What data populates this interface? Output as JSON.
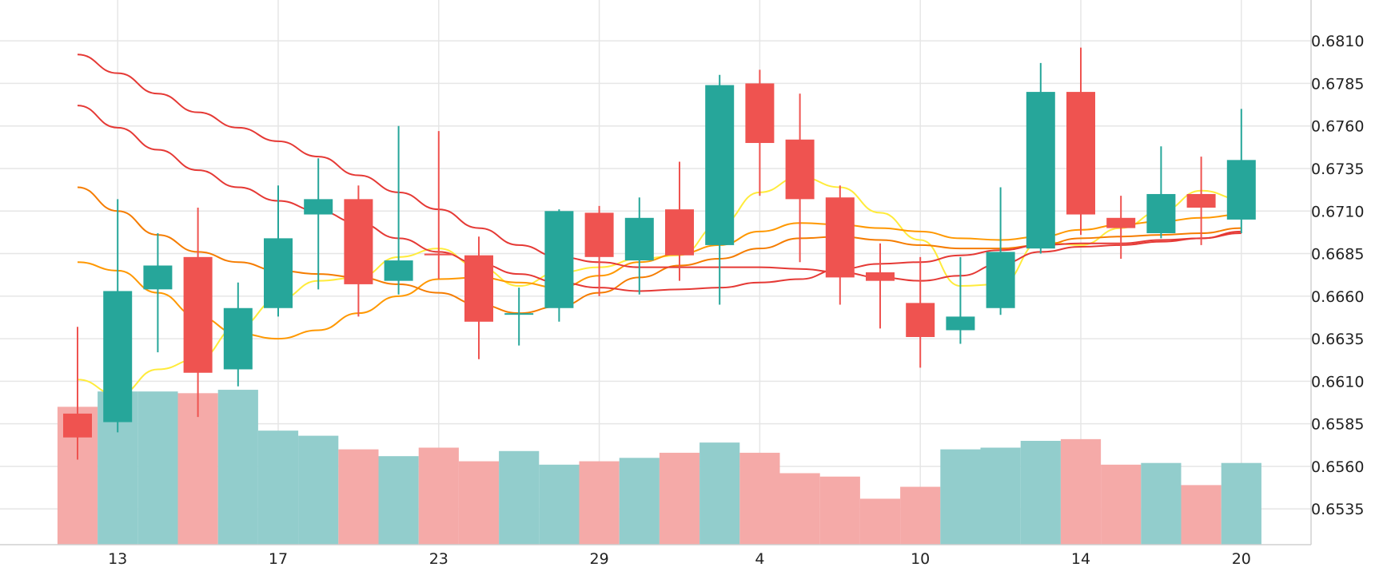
{
  "chart_data": {
    "type": "candlestick",
    "y_axis": {
      "position": "right",
      "ticks": [
        "0.6810",
        "0.6785",
        "0.6760",
        "0.6735",
        "0.6710",
        "0.6685",
        "0.6660",
        "0.6635",
        "0.6610",
        "0.6585",
        "0.6560",
        "0.6535"
      ],
      "range": [
        0.6514,
        0.6834
      ]
    },
    "x_axis": {
      "tick_labels": [
        {
          "index": 1,
          "label": "13"
        },
        {
          "index": 5,
          "label": "17"
        },
        {
          "index": 9,
          "label": "23"
        },
        {
          "index": 13,
          "label": "29"
        },
        {
          "index": 17,
          "label": "4"
        },
        {
          "index": 21,
          "label": "10"
        },
        {
          "index": 25,
          "label": "14"
        },
        {
          "index": 29,
          "label": "20"
        }
      ]
    },
    "grid": true,
    "colors": {
      "up": "#26a69a",
      "down": "#ef5350",
      "volume_up": "#92cdcc",
      "volume_down": "#f5aaa8",
      "ma1": "#ffeb3b",
      "ma2": "#ff9800",
      "ma3": "#f57c00",
      "ma4": "#e53935"
    },
    "candles": [
      {
        "open": 0.6591,
        "high": 0.6642,
        "low": 0.6564,
        "close": 0.6577,
        "volume": 0.6595
      },
      {
        "open": 0.6586,
        "high": 0.6717,
        "low": 0.658,
        "close": 0.6663,
        "volume": 0.6604
      },
      {
        "open": 0.6664,
        "high": 0.6697,
        "low": 0.6627,
        "close": 0.6678,
        "volume": 0.6604
      },
      {
        "open": 0.6683,
        "high": 0.6712,
        "low": 0.6589,
        "close": 0.6615,
        "volume": 0.6603
      },
      {
        "open": 0.6617,
        "high": 0.6668,
        "low": 0.6607,
        "close": 0.6653,
        "volume": 0.6605
      },
      {
        "open": 0.6653,
        "high": 0.6725,
        "low": 0.6648,
        "close": 0.6694,
        "volume": 0.6581
      },
      {
        "open": 0.6708,
        "high": 0.6741,
        "low": 0.6664,
        "close": 0.6717,
        "volume": 0.6578
      },
      {
        "open": 0.6717,
        "high": 0.6725,
        "low": 0.6648,
        "close": 0.6667,
        "volume": 0.657
      },
      {
        "open": 0.6669,
        "high": 0.676,
        "low": 0.6661,
        "close": 0.6681,
        "volume": 0.6566
      },
      {
        "open": 0.6685,
        "high": 0.6757,
        "low": 0.667,
        "close": 0.6684,
        "volume": 0.6571
      },
      {
        "open": 0.6684,
        "high": 0.6695,
        "low": 0.6623,
        "close": 0.6645,
        "volume": 0.6563
      },
      {
        "open": 0.665,
        "high": 0.6665,
        "low": 0.6631,
        "close": 0.665,
        "volume": 0.6569
      },
      {
        "open": 0.6653,
        "high": 0.6711,
        "low": 0.6645,
        "close": 0.671,
        "volume": 0.6561
      },
      {
        "open": 0.6709,
        "high": 0.6713,
        "low": 0.666,
        "close": 0.6683,
        "volume": 0.6563
      },
      {
        "open": 0.6681,
        "high": 0.6718,
        "low": 0.6661,
        "close": 0.6706,
        "volume": 0.6565
      },
      {
        "open": 0.6711,
        "high": 0.6739,
        "low": 0.6669,
        "close": 0.6684,
        "volume": 0.6568
      },
      {
        "open": 0.669,
        "high": 0.679,
        "low": 0.6655,
        "close": 0.6784,
        "volume": 0.6574
      },
      {
        "open": 0.6785,
        "high": 0.6793,
        "low": 0.6719,
        "close": 0.675,
        "volume": 0.6568
      },
      {
        "open": 0.6752,
        "high": 0.6779,
        "low": 0.668,
        "close": 0.6717,
        "volume": 0.6556
      },
      {
        "open": 0.6718,
        "high": 0.6725,
        "low": 0.6655,
        "close": 0.6671,
        "volume": 0.6554
      },
      {
        "open": 0.6674,
        "high": 0.6691,
        "low": 0.6641,
        "close": 0.6669,
        "volume": 0.6541
      },
      {
        "open": 0.6656,
        "high": 0.6683,
        "low": 0.6618,
        "close": 0.6636,
        "volume": 0.6548
      },
      {
        "open": 0.664,
        "high": 0.6683,
        "low": 0.6632,
        "close": 0.6648,
        "volume": 0.657
      },
      {
        "open": 0.6653,
        "high": 0.6724,
        "low": 0.6649,
        "close": 0.6686,
        "volume": 0.6571
      },
      {
        "open": 0.6688,
        "high": 0.6797,
        "low": 0.6685,
        "close": 0.678,
        "volume": 0.6575
      },
      {
        "open": 0.678,
        "high": 0.6806,
        "low": 0.6696,
        "close": 0.6708,
        "volume": 0.6576
      },
      {
        "open": 0.6706,
        "high": 0.6719,
        "low": 0.6682,
        "close": 0.67,
        "volume": 0.6561
      },
      {
        "open": 0.6697,
        "high": 0.6748,
        "low": 0.6694,
        "close": 0.672,
        "volume": 0.6562
      },
      {
        "open": 0.672,
        "high": 0.6742,
        "low": 0.669,
        "close": 0.6712,
        "volume": 0.6549
      },
      {
        "open": 0.6705,
        "high": 0.677,
        "low": 0.6697,
        "close": 0.674,
        "volume": 0.6562
      }
    ],
    "moving_averages": [
      {
        "color_key": "ma1",
        "values": [
          0.6611,
          0.6602,
          0.6617,
          0.6623,
          0.6642,
          0.6658,
          0.6669,
          0.6671,
          0.6683,
          0.6688,
          0.6677,
          0.6666,
          0.6674,
          0.6677,
          0.6682,
          0.6684,
          0.6702,
          0.6721,
          0.673,
          0.6724,
          0.6709,
          0.6693,
          0.6666,
          0.6667,
          0.6692,
          0.669,
          0.67,
          0.671,
          0.6722,
          0.6717
        ]
      },
      {
        "color_key": "ma2",
        "values": [
          0.668,
          0.6675,
          0.6662,
          0.6648,
          0.6638,
          0.6635,
          0.664,
          0.665,
          0.666,
          0.667,
          0.6671,
          0.6668,
          0.6665,
          0.6672,
          0.668,
          0.6685,
          0.669,
          0.6698,
          0.6703,
          0.6702,
          0.67,
          0.6698,
          0.6694,
          0.6693,
          0.6695,
          0.6699,
          0.6702,
          0.6704,
          0.6706,
          0.6708
        ]
      },
      {
        "color_key": "ma3",
        "values": [
          0.6724,
          0.671,
          0.6696,
          0.6686,
          0.668,
          0.6675,
          0.6673,
          0.6671,
          0.6667,
          0.6662,
          0.6655,
          0.665,
          0.6654,
          0.6662,
          0.6671,
          0.6678,
          0.6682,
          0.6688,
          0.6694,
          0.6695,
          0.6693,
          0.669,
          0.6688,
          0.6688,
          0.669,
          0.6694,
          0.6695,
          0.6696,
          0.6697,
          0.67
        ]
      },
      {
        "color_key": "ma4",
        "values": [
          0.6772,
          0.6759,
          0.6746,
          0.6734,
          0.6724,
          0.6716,
          0.671,
          0.6703,
          0.6694,
          0.6686,
          0.6679,
          0.6673,
          0.6668,
          0.6665,
          0.6663,
          0.6664,
          0.6665,
          0.6668,
          0.667,
          0.6676,
          0.6679,
          0.668,
          0.6684,
          0.6687,
          0.669,
          0.6691,
          0.6691,
          0.6693,
          0.6694,
          0.6698
        ]
      },
      {
        "color_key": "ma4",
        "values": [
          0.6802,
          0.6791,
          0.6779,
          0.6768,
          0.6759,
          0.6751,
          0.6742,
          0.6731,
          0.6721,
          0.6711,
          0.67,
          0.669,
          0.6683,
          0.668,
          0.6677,
          0.6677,
          0.6677,
          0.6677,
          0.6676,
          0.6674,
          0.6671,
          0.6669,
          0.6672,
          0.6679,
          0.6686,
          0.6689,
          0.669,
          0.6692,
          0.6694,
          0.6697
        ]
      }
    ]
  }
}
